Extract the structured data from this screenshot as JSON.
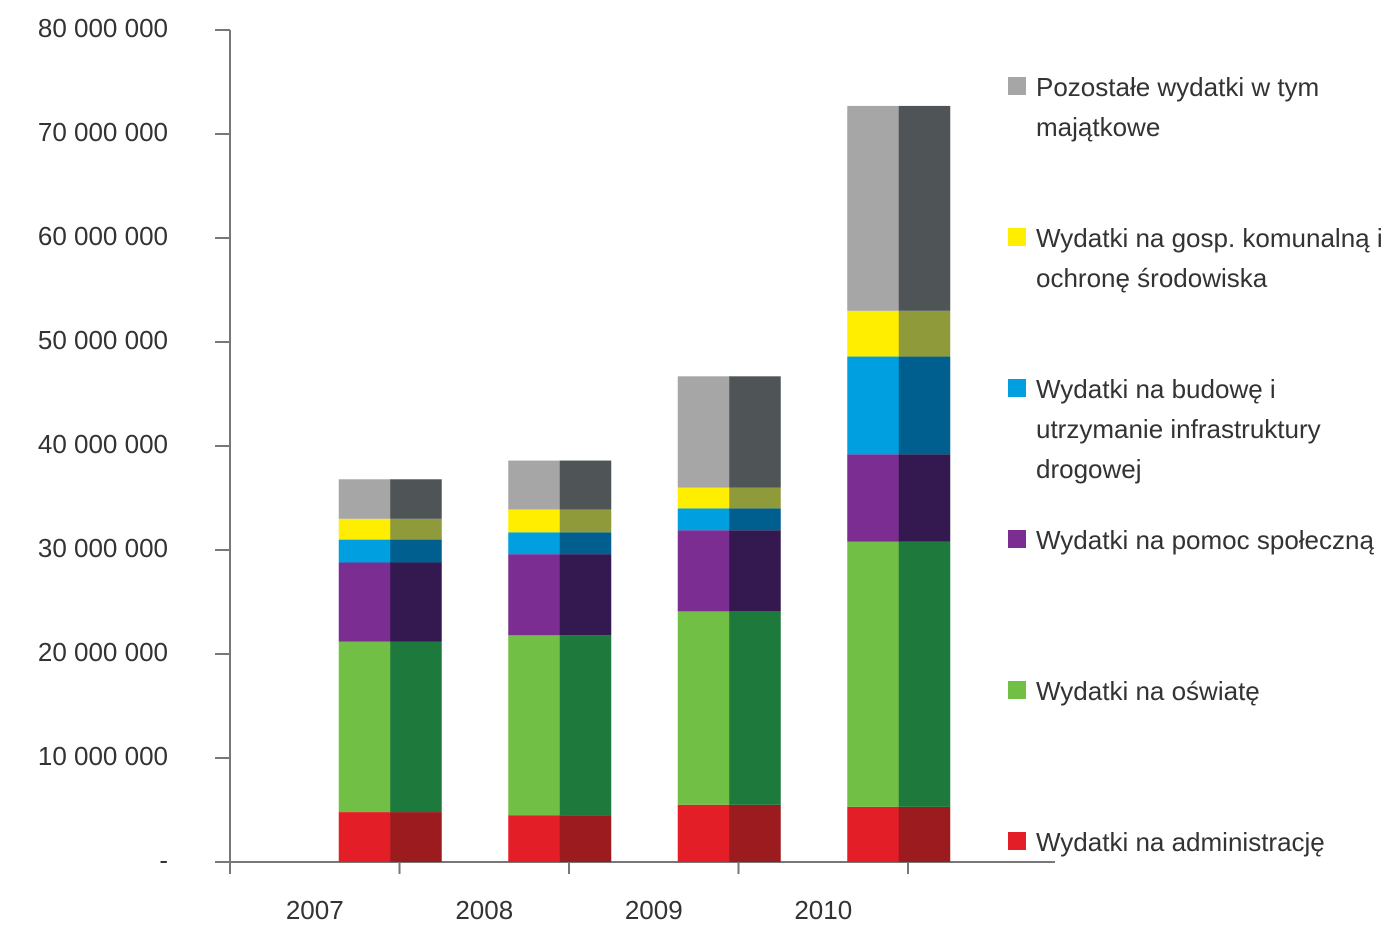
{
  "chart_data": {
    "type": "stacked_bar",
    "categories": [
      "2007",
      "2008",
      "2009",
      "2010"
    ],
    "series": [
      {
        "name": "Wydatki na administrację",
        "color": "#e41e26",
        "shade": "#9b1b1e",
        "values": [
          4800000,
          4500000,
          5500000,
          5300000
        ]
      },
      {
        "name": "Wydatki na oświatę",
        "color": "#71bf44",
        "shade": "#1e7a3c",
        "values": [
          16400000,
          17300000,
          18600000,
          25500000
        ]
      },
      {
        "name": "Wydatki na pomoc społeczną",
        "color": "#7b2d91",
        "shade": "#33194f",
        "values": [
          7600000,
          7800000,
          7800000,
          8400000
        ]
      },
      {
        "name": "Wydatki na budowę i utrzymanie infrastruktury drogowej",
        "color": "#00a0e0",
        "shade": "#005f8f",
        "values": [
          2200000,
          2100000,
          2100000,
          9400000
        ]
      },
      {
        "name": "Wydatki na gosp. komunalną i ochronę środowiska",
        "color": "#ffee00",
        "shade": "#8f9a3a",
        "values": [
          2000000,
          2200000,
          2000000,
          4400000
        ]
      },
      {
        "name": "Pozostałe wydatki w tym majątkowe",
        "color": "#a6a6a6",
        "shade": "#4f5556",
        "values": [
          3800000,
          4700000,
          10700000,
          19700000
        ]
      }
    ],
    "ylim": [
      0,
      80000000
    ],
    "yticks": [
      {
        "value": 0,
        "label": "-"
      },
      {
        "value": 10000000,
        "label": "10 000 000"
      },
      {
        "value": 20000000,
        "label": "20 000 000"
      },
      {
        "value": 30000000,
        "label": "30 000 000"
      },
      {
        "value": 40000000,
        "label": "40 000 000"
      },
      {
        "value": 50000000,
        "label": "50 000 000"
      },
      {
        "value": 60000000,
        "label": "60 000 000"
      },
      {
        "value": 70000000,
        "label": "70 000 000"
      },
      {
        "value": 80000000,
        "label": "80 000 000"
      }
    ],
    "legend": "right",
    "grid": false
  }
}
